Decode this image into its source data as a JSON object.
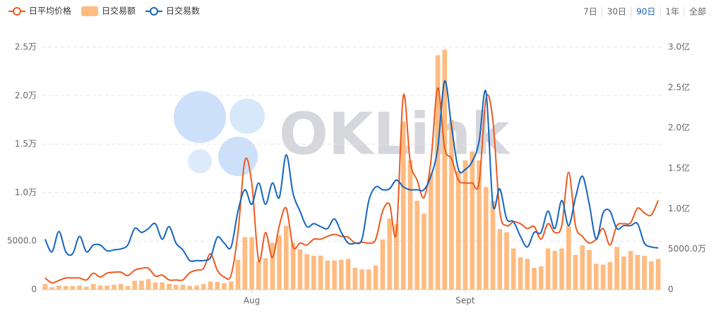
{
  "chart_data": {
    "type": "combo",
    "watermark": "OKLink",
    "range_buttons": [
      "7日",
      "30日",
      "90日",
      "1年",
      "全部"
    ],
    "active_range": 2,
    "categories": [
      null,
      null,
      null,
      null,
      null,
      null,
      null,
      null,
      null,
      null,
      null,
      null,
      null,
      null,
      null,
      null,
      null,
      null,
      null,
      null,
      null,
      null,
      null,
      null,
      null,
      null,
      null,
      null,
      null,
      null,
      "Aug",
      null,
      null,
      null,
      null,
      null,
      null,
      null,
      null,
      null,
      null,
      null,
      null,
      null,
      null,
      null,
      null,
      null,
      null,
      null,
      null,
      null,
      null,
      null,
      null,
      null,
      null,
      null,
      null,
      null,
      null,
      "Sept",
      null,
      null,
      null,
      null,
      null,
      null,
      null,
      null,
      null,
      null,
      null,
      null,
      null,
      null,
      null,
      null,
      null,
      null,
      null,
      null,
      null,
      null,
      null,
      null,
      null,
      null,
      null,
      null
    ],
    "series": [
      {
        "name": "日平均价格",
        "kind": "line",
        "axis": "y",
        "color": "#ee5a1e",
        "values": [
          1200,
          700,
          950,
          1200,
          1200,
          1200,
          1000,
          1700,
          1300,
          1700,
          1800,
          1800,
          1450,
          2000,
          2200,
          2200,
          1400,
          1500,
          1000,
          1000,
          1000,
          1750,
          2000,
          2200,
          3700,
          2000,
          1300,
          1500,
          5900,
          13300,
          11000,
          3000,
          5900,
          3300,
          6600,
          8400,
          4400,
          4800,
          4600,
          5200,
          5200,
          5500,
          5700,
          5500,
          5400,
          4800,
          4900,
          4800,
          5200,
          8100,
          8800,
          5900,
          20000,
          13200,
          11300,
          9500,
          13200,
          20800,
          14600,
          13500,
          11300,
          11000,
          11000,
          11000,
          19700,
          17500,
          8100,
          6600,
          7000,
          6800,
          6300,
          6500,
          5200,
          6800,
          5900,
          6600,
          12100,
          6600,
          5500,
          4800,
          5200,
          6300,
          4600,
          6600,
          6800,
          6900,
          8400,
          7900,
          7700,
          9200
        ]
      },
      {
        "name": "日交易额",
        "kind": "bar",
        "axis": "y2",
        "color": "#ffbb80",
        "values": [
          700,
          300,
          500,
          450,
          450,
          500,
          350,
          700,
          500,
          500,
          600,
          700,
          450,
          1100,
          1100,
          1300,
          900,
          900,
          700,
          600,
          600,
          450,
          500,
          700,
          1000,
          950,
          800,
          1000,
          3700,
          6500,
          6500,
          3500,
          3900,
          5800,
          6700,
          7900,
          5800,
          5000,
          4400,
          4200,
          4200,
          3600,
          3600,
          3700,
          3800,
          2700,
          2500,
          2500,
          3000,
          6200,
          8800,
          8100,
          20800,
          16000,
          11000,
          9400,
          14500,
          29000,
          29700,
          21000,
          14700,
          16000,
          17100,
          16000,
          12700,
          11000,
          7500,
          7100,
          5100,
          4000,
          3800,
          2700,
          2900,
          5100,
          4800,
          5100,
          7900,
          4300,
          5500,
          4900,
          3200,
          3100,
          3400,
          5300,
          4100,
          4800,
          4300,
          4200,
          3500,
          3800
        ]
      },
      {
        "name": "日交易数",
        "kind": "line",
        "axis": "y",
        "color": "#1565c0",
        "values": [
          5200,
          3900,
          6000,
          3900,
          3700,
          5500,
          3900,
          4600,
          4600,
          4000,
          4100,
          4200,
          4600,
          6300,
          5900,
          6300,
          6800,
          5200,
          6500,
          4800,
          4100,
          3000,
          3000,
          3000,
          3300,
          5400,
          4800,
          4400,
          8100,
          10300,
          8800,
          11000,
          8800,
          11000,
          9500,
          13900,
          9900,
          8100,
          6500,
          6800,
          6500,
          6300,
          7300,
          5900,
          4800,
          4800,
          5200,
          9200,
          10600,
          10300,
          10400,
          11300,
          10600,
          10300,
          10300,
          10300,
          11700,
          14600,
          21500,
          16800,
          12400,
          12400,
          13200,
          15300,
          20400,
          8800,
          10400,
          7300,
          7000,
          5500,
          4400,
          5900,
          5900,
          8100,
          6300,
          9200,
          6600,
          9500,
          11700,
          8800,
          5200,
          7900,
          8100,
          6300,
          6600,
          6600,
          6800,
          4800,
          4400,
          4300
        ]
      }
    ],
    "ylim": [
      0,
      25000
    ],
    "yticks": [
      0,
      {
        "value": 5000,
        "label": "5000.0"
      },
      {
        "value": 10000,
        "label": "1.0万"
      },
      {
        "value": 15000,
        "label": "1.5万"
      },
      {
        "value": 20000,
        "label": "2.0万"
      },
      {
        "value": 25000,
        "label": "2.5万"
      }
    ],
    "y2lim": [
      0,
      30000
    ],
    "y2ticks": [
      0,
      {
        "value": 5000,
        "label": "5000.0万"
      },
      {
        "value": 10000,
        "label": "1.0亿"
      },
      {
        "value": 15000,
        "label": "1.5亿"
      },
      {
        "value": 20000,
        "label": "2.0亿"
      },
      {
        "value": 25000,
        "label": "2.5亿"
      },
      {
        "value": 30000,
        "label": "3.0亿"
      }
    ],
    "grid": true
  }
}
